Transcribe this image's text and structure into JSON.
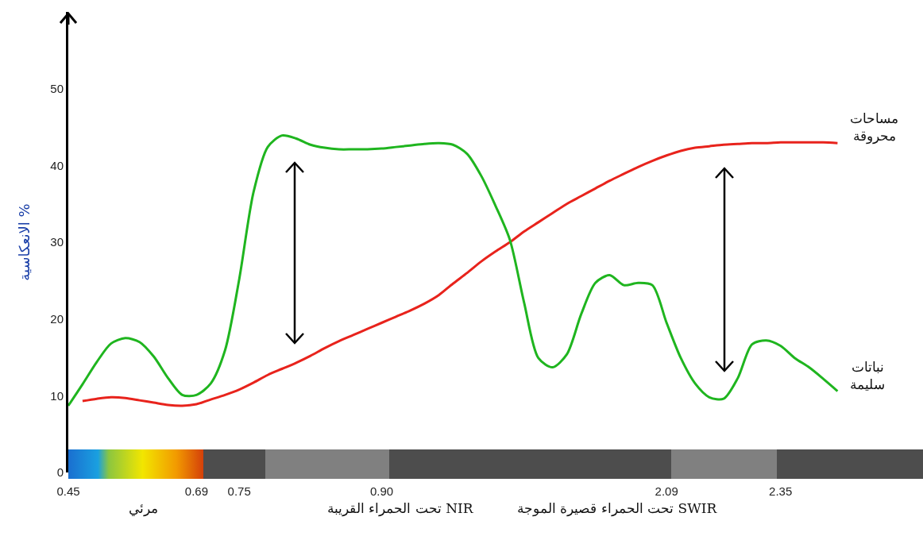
{
  "chart_data": {
    "type": "line",
    "ylabel": "الانعكاسية %",
    "categories": [
      "0.45",
      null,
      null,
      null,
      null,
      null,
      null,
      null,
      null,
      "0.69",
      null,
      null,
      "0.75",
      null,
      null,
      null,
      null,
      null,
      null,
      null,
      null,
      null,
      "0.90",
      null,
      null,
      null,
      null,
      null,
      null,
      null,
      null,
      null,
      null,
      null,
      null,
      null,
      null,
      null,
      null,
      null,
      null,
      null,
      "2.09",
      null,
      null,
      null,
      null,
      null,
      null,
      null,
      "2.35",
      null,
      null,
      null,
      null,
      null,
      null,
      null,
      null,
      null,
      null
    ],
    "series": [
      {
        "name": "مساحات محروقة",
        "color": "#e8231c",
        "values": [
          null,
          9.3,
          9.6,
          9.8,
          9.7,
          9.4,
          9.1,
          8.8,
          8.7,
          8.9,
          9.5,
          10.1,
          10.8,
          11.7,
          12.7,
          13.5,
          14.3,
          15.2,
          16.2,
          17.1,
          17.9,
          18.7,
          19.5,
          20.3,
          21.1,
          22.0,
          23.1,
          24.6,
          26.0,
          27.5,
          28.8,
          30.0,
          31.4,
          32.6,
          33.8,
          35.0,
          36.0,
          37.0,
          38.0,
          38.9,
          39.8,
          40.6,
          41.3,
          41.9,
          42.3,
          42.5,
          42.7,
          42.8,
          42.9,
          42.9,
          43.0,
          43.0,
          43.0,
          43.0,
          42.9,
          null,
          null,
          null,
          null,
          null,
          null
        ]
      },
      {
        "name": "نباتات سليمة",
        "color": "#1fb51f",
        "values": [
          8.7,
          11.5,
          14.4,
          16.8,
          17.5,
          17.0,
          15.1,
          12.3,
          10.1,
          10.1,
          11.6,
          15.9,
          25.2,
          36.5,
          42.4,
          43.9,
          43.5,
          42.7,
          42.3,
          42.1,
          42.1,
          42.1,
          42.2,
          42.4,
          42.6,
          42.8,
          42.9,
          42.7,
          41.5,
          38.6,
          34.7,
          30.3,
          22.1,
          14.9,
          13.7,
          15.4,
          20.6,
          24.7,
          25.7,
          24.4,
          24.7,
          24.4,
          19.5,
          14.9,
          11.6,
          9.8,
          9.6,
          12.3,
          16.7,
          17.2,
          16.5,
          14.9,
          13.7,
          12.2,
          10.6,
          null,
          null,
          null,
          null,
          null,
          null
        ]
      }
    ],
    "ylim": [
      0,
      60
    ],
    "yticks": [
      0,
      10,
      20,
      30,
      40,
      50
    ],
    "grid": false,
    "legend": false,
    "marker": "none",
    "line_style": "solid",
    "annotations": [
      "مرئي",
      "تحت الحمراء القريبة NIR",
      "تحت الحمراء قصيرة الموجة SWIR"
    ]
  }
}
